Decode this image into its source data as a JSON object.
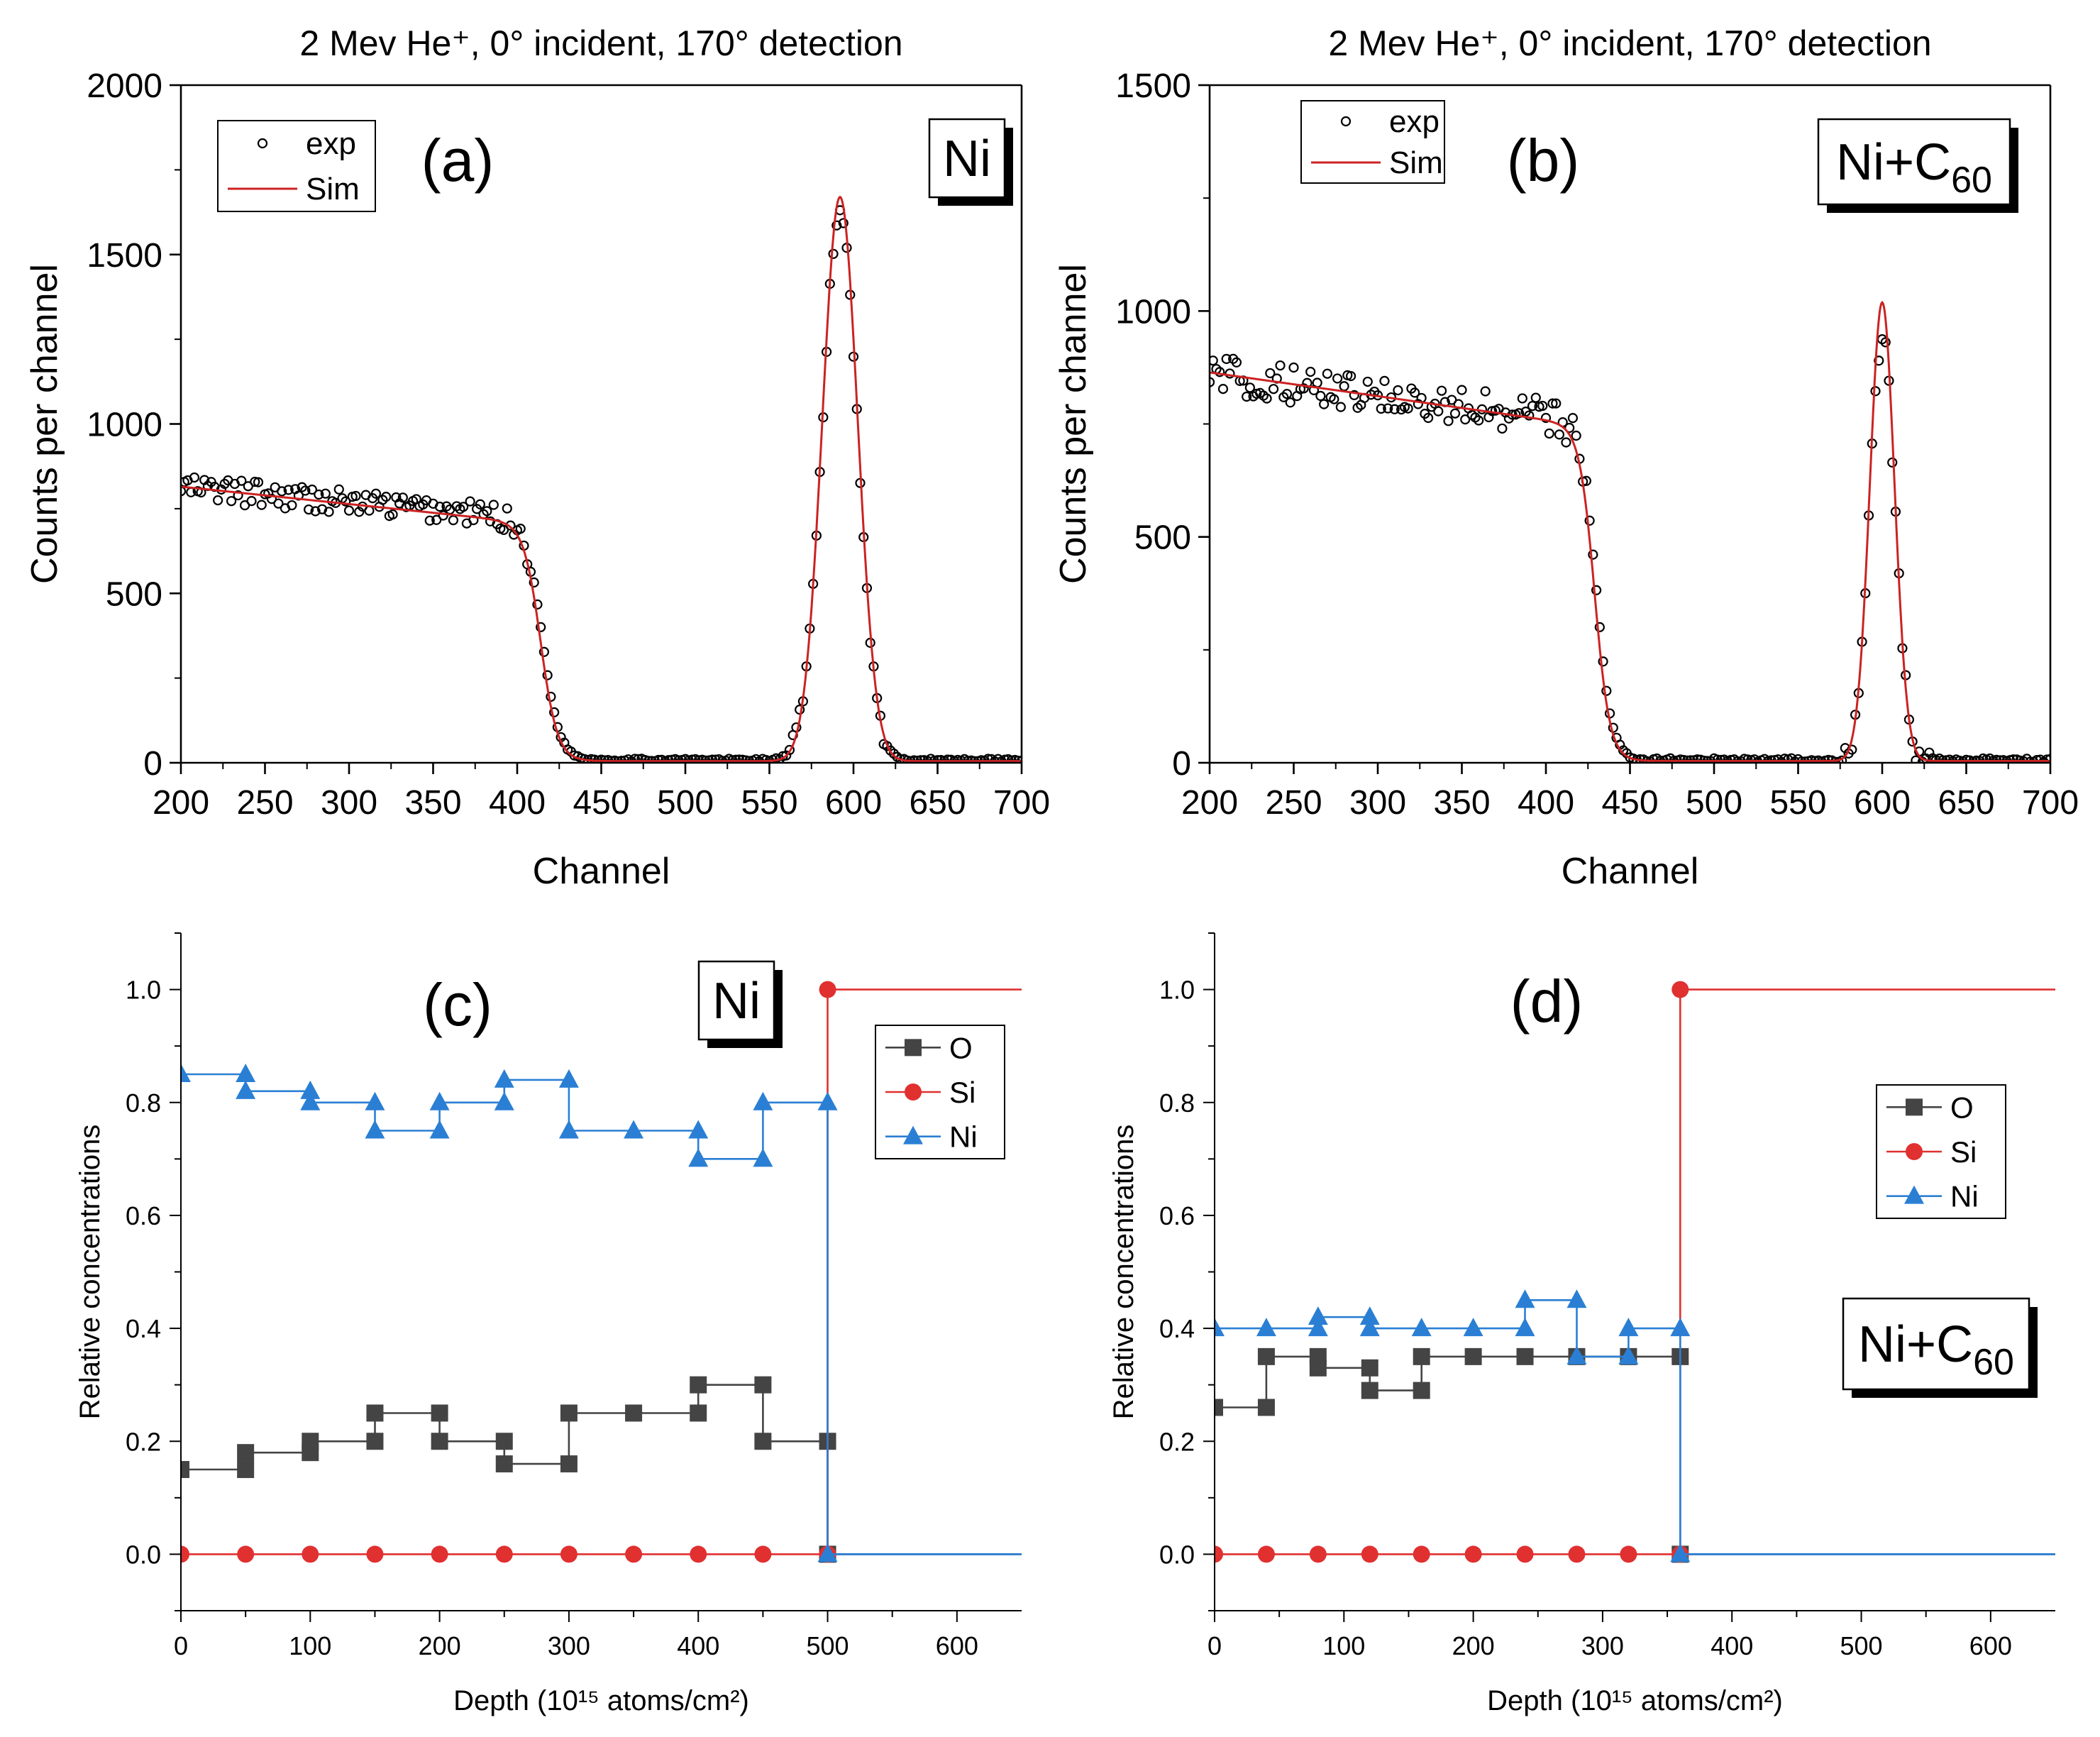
{
  "chart_data": [
    {
      "id": "a",
      "type": "scatter",
      "title": "2 Mev He⁺, 0° incident, 170° detection",
      "panel_label": "(a)",
      "sample_label": "Ni",
      "sample_sub": "",
      "xlabel": "Channel",
      "ylabel": "Counts per channel",
      "xlim": [
        200,
        700
      ],
      "ylim": [
        0,
        2000
      ],
      "xticks": [
        200,
        250,
        300,
        350,
        400,
        450,
        500,
        550,
        600,
        650,
        700
      ],
      "yticks": [
        0,
        500,
        1000,
        1500,
        2000
      ],
      "legend": [
        "exp",
        "Sim"
      ],
      "series": [
        {
          "name": "exp",
          "model": "rbs",
          "plateau_start": 805,
          "plateau_end": 710,
          "edge": 415,
          "edge_width": 5,
          "background": 8,
          "peak_center": 592,
          "peak_height": 1620,
          "peak_sigma": 10.5,
          "noise": 38,
          "step": 2
        },
        {
          "name": "Sim",
          "model": "rbs",
          "color": "#cc2222",
          "plateau_start": 810,
          "plateau_end": 700,
          "edge": 414,
          "edge_width": 5,
          "background": 5,
          "peak_center": 592,
          "peak_height": 1665,
          "peak_sigma": 10.5
        }
      ]
    },
    {
      "id": "b",
      "type": "scatter",
      "title": "2 Mev He⁺, 0° incident, 170° detection",
      "panel_label": "(b)",
      "sample_label": "Ni+C",
      "sample_sub": "60",
      "xlabel": "Channel",
      "ylabel": "Counts per channel",
      "xlim": [
        200,
        700
      ],
      "ylim": [
        0,
        1500
      ],
      "xticks": [
        200,
        250,
        300,
        350,
        400,
        450,
        500,
        550,
        600,
        650,
        700
      ],
      "yticks": [
        0,
        500,
        1000,
        1500
      ],
      "legend": [
        "exp",
        "Sim"
      ],
      "series": [
        {
          "name": "exp",
          "model": "rbs",
          "plateau_start": 855,
          "plateau_end": 745,
          "edge": 430,
          "edge_width": 4.5,
          "background": 6,
          "peak_center": 600,
          "peak_height": 950,
          "peak_sigma": 7.5,
          "noise": 42,
          "step": 2
        },
        {
          "name": "Sim",
          "model": "rbs",
          "color": "#cc2222",
          "plateau_start": 860,
          "plateau_end": 740,
          "edge": 429,
          "edge_width": 4.5,
          "background": 4,
          "peak_center": 600,
          "peak_height": 1015,
          "peak_sigma": 7.3
        }
      ]
    },
    {
      "id": "c",
      "type": "line",
      "panel_label": "(c)",
      "sample_label": "Ni",
      "sample_sub": "",
      "xlabel": "Depth (10¹⁵ atoms/cm²)",
      "ylabel": "Relative concentrations",
      "xlim": [
        0,
        650
      ],
      "ylim": [
        -0.1,
        1.1
      ],
      "xticks": [
        0,
        100,
        200,
        300,
        400,
        500,
        600
      ],
      "yticks": [
        0.0,
        0.2,
        0.4,
        0.6,
        0.8,
        1.0
      ],
      "legend": [
        "O",
        "Si",
        "Ni"
      ],
      "series": [
        {
          "name": "O",
          "color": "#444444",
          "marker": "square",
          "x": [
            0,
            50,
            50,
            100,
            100,
            150,
            150,
            200,
            200,
            250,
            250,
            300,
            300,
            350,
            400,
            400,
            450,
            450,
            500,
            500
          ],
          "y": [
            0.15,
            0.15,
            0.18,
            0.18,
            0.2,
            0.2,
            0.25,
            0.25,
            0.2,
            0.2,
            0.16,
            0.16,
            0.25,
            0.25,
            0.25,
            0.3,
            0.3,
            0.2,
            0.2,
            0.0
          ],
          "extend_to": 650
        },
        {
          "name": "Si",
          "color": "#e03030",
          "marker": "circle",
          "x": [
            0,
            50,
            100,
            150,
            200,
            250,
            300,
            350,
            400,
            450,
            500,
            500
          ],
          "y": [
            0,
            0,
            0,
            0,
            0,
            0,
            0,
            0,
            0,
            0,
            0,
            1.0
          ],
          "extend_to": 650
        },
        {
          "name": "Ni",
          "color": "#2a7fd4",
          "marker": "triangle",
          "x": [
            0,
            50,
            50,
            100,
            100,
            150,
            150,
            200,
            200,
            250,
            250,
            300,
            300,
            350,
            400,
            400,
            450,
            450,
            500,
            500
          ],
          "y": [
            0.85,
            0.85,
            0.82,
            0.82,
            0.8,
            0.8,
            0.75,
            0.75,
            0.8,
            0.8,
            0.84,
            0.84,
            0.75,
            0.75,
            0.75,
            0.7,
            0.7,
            0.8,
            0.8,
            0.0
          ],
          "extend_to": 650
        }
      ]
    },
    {
      "id": "d",
      "type": "line",
      "panel_label": "(d)",
      "sample_label": "Ni+C",
      "sample_sub": "60",
      "xlabel": "Depth (10¹⁵ atoms/cm²)",
      "ylabel": "Relative concentrations",
      "xlim": [
        0,
        650
      ],
      "ylim": [
        -0.1,
        1.1
      ],
      "xticks": [
        0,
        100,
        200,
        300,
        400,
        500,
        600
      ],
      "yticks": [
        0.0,
        0.2,
        0.4,
        0.6,
        0.8,
        1.0
      ],
      "legend": [
        "O",
        "Si",
        "Ni"
      ],
      "series": [
        {
          "name": "O",
          "color": "#444444",
          "marker": "square",
          "x": [
            0,
            40,
            40,
            80,
            80,
            120,
            120,
            160,
            160,
            200,
            240,
            280,
            320,
            360,
            360
          ],
          "y": [
            0.26,
            0.26,
            0.35,
            0.35,
            0.33,
            0.33,
            0.29,
            0.29,
            0.35,
            0.35,
            0.35,
            0.35,
            0.35,
            0.35,
            0.0
          ],
          "extend_to": 650
        },
        {
          "name": "Si",
          "color": "#e03030",
          "marker": "circle",
          "x": [
            0,
            40,
            80,
            120,
            160,
            200,
            240,
            280,
            320,
            360,
            360
          ],
          "y": [
            0,
            0,
            0,
            0,
            0,
            0,
            0,
            0,
            0,
            0,
            1.0
          ],
          "extend_to": 650
        },
        {
          "name": "Ni",
          "color": "#2a7fd4",
          "marker": "triangle",
          "x": [
            0,
            40,
            80,
            80,
            120,
            120,
            160,
            200,
            240,
            240,
            280,
            280,
            320,
            320,
            360,
            360
          ],
          "y": [
            0.4,
            0.4,
            0.4,
            0.42,
            0.42,
            0.4,
            0.4,
            0.4,
            0.4,
            0.45,
            0.45,
            0.35,
            0.35,
            0.4,
            0.4,
            0.0
          ],
          "extend_to": 650
        }
      ]
    }
  ]
}
